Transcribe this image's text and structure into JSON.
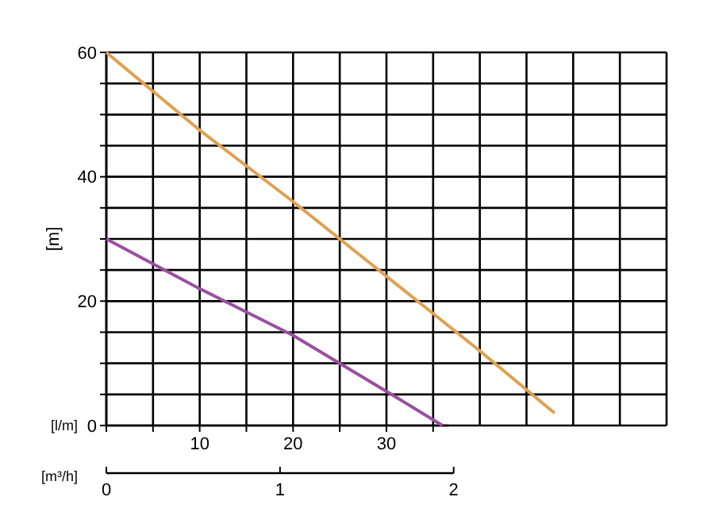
{
  "chart_data": {
    "type": "line",
    "ylabel": "[m]",
    "xlabel": "[l/m]",
    "x2label": "[m³/h]",
    "xlim": [
      0,
      60
    ],
    "xticks": [
      {
        "value": 0,
        "label": null
      },
      {
        "value": 5,
        "label": null
      },
      10,
      {
        "value": 15,
        "label": null
      },
      20,
      {
        "value": 25,
        "label": null
      },
      30,
      {
        "value": 35,
        "label": null
      }
    ],
    "ylim": [
      0,
      60
    ],
    "yticks": [
      0,
      {
        "value": 5,
        "label": null
      },
      {
        "value": 10,
        "label": null
      },
      {
        "value": 15,
        "label": null
      },
      20,
      {
        "value": 25,
        "label": null
      },
      {
        "value": 30,
        "label": null
      },
      {
        "value": 35,
        "label": null
      },
      40,
      {
        "value": 45,
        "label": null
      },
      {
        "value": 50,
        "label": null
      },
      {
        "value": 55,
        "label": null
      },
      60
    ],
    "x2lim": [
      0,
      2
    ],
    "x2ticks": [
      0,
      1,
      2
    ],
    "grid": true,
    "marker": "none",
    "line_style": "solid",
    "series": [
      {
        "color": "#e0a050",
        "x": [
          0,
          10,
          20,
          25,
          30,
          40,
          48
        ],
        "values": [
          60,
          47.5,
          36,
          30,
          24,
          12,
          2
        ]
      },
      {
        "color": "#9b4fa0",
        "x": [
          0,
          10,
          20,
          25,
          30,
          36
        ],
        "values": [
          30,
          22,
          14.5,
          10,
          5.5,
          0
        ]
      }
    ]
  }
}
